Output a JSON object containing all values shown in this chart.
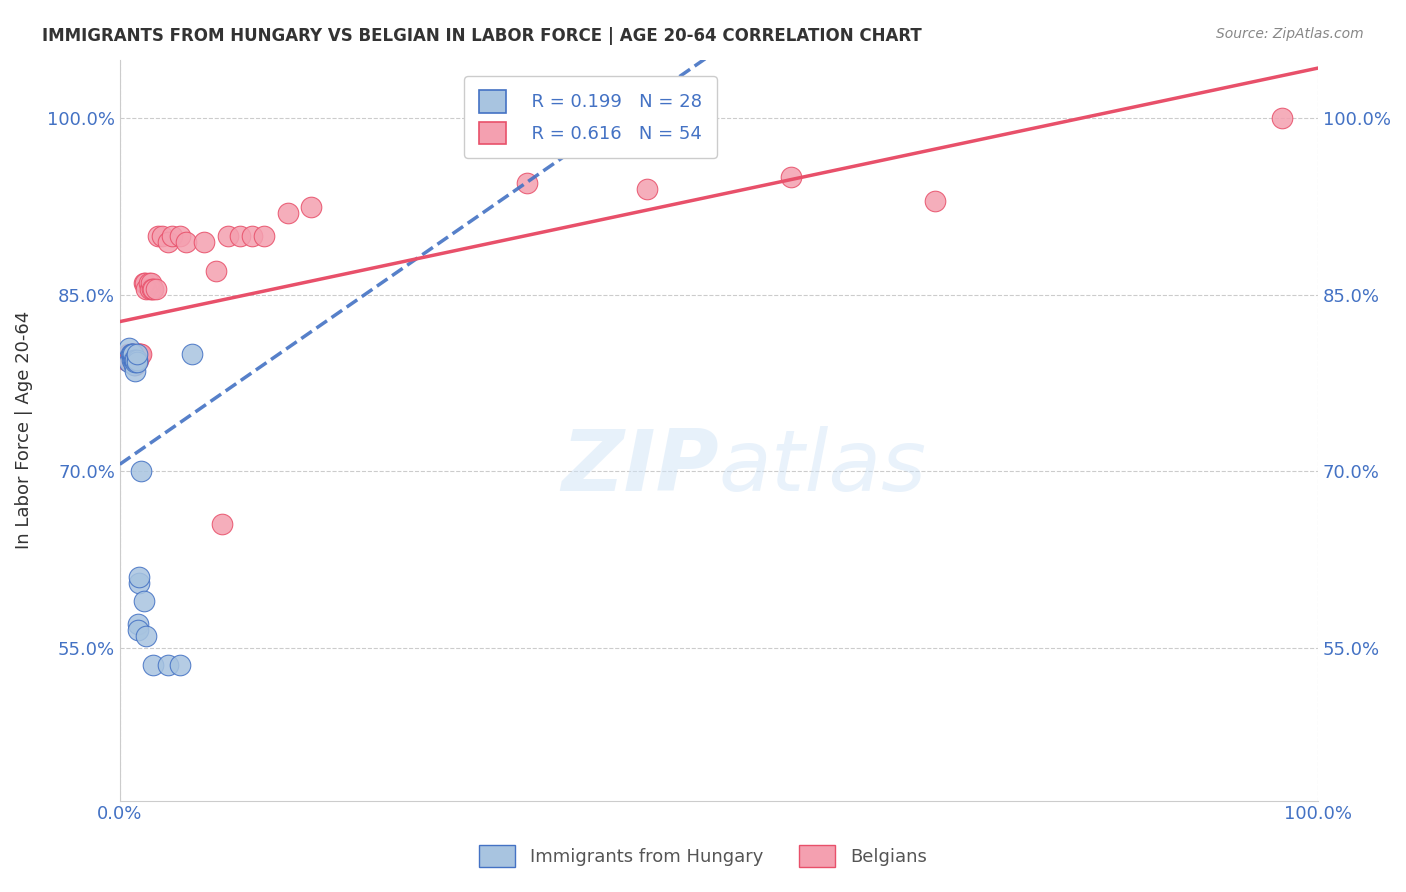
{
  "title": "IMMIGRANTS FROM HUNGARY VS BELGIAN IN LABOR FORCE | AGE 20-64 CORRELATION CHART",
  "source": "Source: ZipAtlas.com",
  "xlabel": "",
  "ylabel": "In Labor Force | Age 20-64",
  "xlim": [
    0.0,
    1.0
  ],
  "ylim": [
    0.42,
    1.05
  ],
  "x_tick_labels": [
    "0.0%",
    "100.0%"
  ],
  "y_tick_labels": [
    "55.0%",
    "70.0%",
    "85.0%",
    "100.0%"
  ],
  "y_tick_values": [
    0.55,
    0.7,
    0.85,
    1.0
  ],
  "legend_r1": "R = 0.199",
  "legend_n1": "N = 28",
  "legend_r2": "R = 0.616",
  "legend_n2": "N = 54",
  "color_hungary": "#a8c4e0",
  "color_belgian": "#f4a0b0",
  "color_line_hungary": "#4472c4",
  "color_line_belgian": "#e8506a",
  "color_axis_labels": "#4472c4",
  "watermark": "ZIPatlas",
  "hungary_x": [
    0.008,
    0.008,
    0.009,
    0.01,
    0.01,
    0.01,
    0.011,
    0.011,
    0.012,
    0.012,
    0.013,
    0.013,
    0.013,
    0.014,
    0.014,
    0.014,
    0.015,
    0.015,
    0.016,
    0.016,
    0.018,
    0.02,
    0.022,
    0.028,
    0.04,
    0.05,
    0.06,
    0.33
  ],
  "hungary_y": [
    0.805,
    0.793,
    0.8,
    0.795,
    0.8,
    0.8,
    0.795,
    0.8,
    0.79,
    0.795,
    0.785,
    0.793,
    0.795,
    0.795,
    0.793,
    0.8,
    0.57,
    0.565,
    0.605,
    0.61,
    0.7,
    0.59,
    0.56,
    0.535,
    0.535,
    0.535,
    0.8,
    1.0
  ],
  "belgian_x": [
    0.005,
    0.007,
    0.008,
    0.009,
    0.009,
    0.01,
    0.01,
    0.01,
    0.011,
    0.011,
    0.011,
    0.012,
    0.012,
    0.012,
    0.013,
    0.013,
    0.013,
    0.014,
    0.014,
    0.015,
    0.015,
    0.016,
    0.016,
    0.017,
    0.018,
    0.02,
    0.021,
    0.022,
    0.024,
    0.025,
    0.026,
    0.027,
    0.028,
    0.03,
    0.032,
    0.035,
    0.04,
    0.044,
    0.05,
    0.055,
    0.07,
    0.08,
    0.085,
    0.09,
    0.1,
    0.11,
    0.12,
    0.14,
    0.16,
    0.34,
    0.44,
    0.56,
    0.68,
    0.97
  ],
  "belgian_y": [
    0.795,
    0.8,
    0.795,
    0.8,
    0.8,
    0.8,
    0.8,
    0.8,
    0.8,
    0.795,
    0.8,
    0.795,
    0.8,
    0.795,
    0.795,
    0.79,
    0.8,
    0.8,
    0.8,
    0.8,
    0.795,
    0.8,
    0.8,
    0.8,
    0.8,
    0.86,
    0.86,
    0.855,
    0.86,
    0.855,
    0.86,
    0.855,
    0.855,
    0.855,
    0.9,
    0.9,
    0.895,
    0.9,
    0.9,
    0.895,
    0.895,
    0.87,
    0.655,
    0.9,
    0.9,
    0.9,
    0.9,
    0.92,
    0.925,
    0.945,
    0.94,
    0.95,
    0.93,
    1.0
  ]
}
